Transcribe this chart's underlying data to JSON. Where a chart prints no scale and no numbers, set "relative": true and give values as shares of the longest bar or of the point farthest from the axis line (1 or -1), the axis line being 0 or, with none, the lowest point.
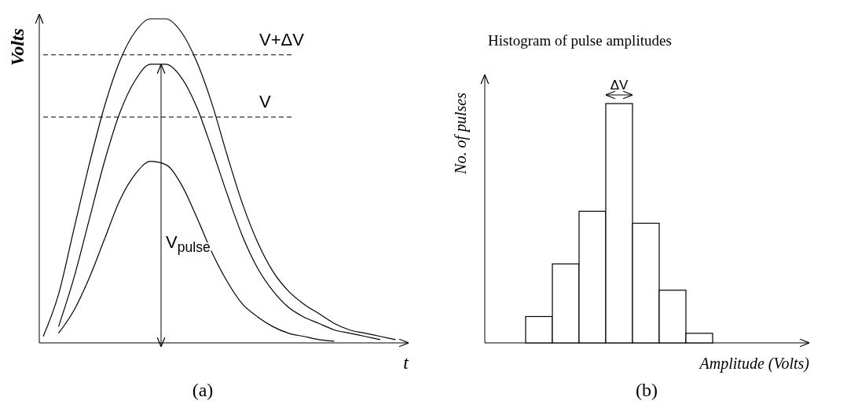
{
  "chart_data": [
    {
      "type": "line",
      "relative": true,
      "xlabel": "t",
      "ylabel": "Volts",
      "annotations": [
        "V$_{pulse}$",
        "(a)"
      ],
      "categories": [
        null,
        null,
        null,
        null,
        null,
        null,
        null,
        null,
        null,
        null,
        null,
        null,
        null,
        null,
        null,
        null,
        null,
        null,
        null,
        null,
        null,
        null,
        null,
        null
      ],
      "series": [
        {
          "color": "#000000",
          "values": [
            0.02,
            0.15,
            0.35,
            0.55,
            0.73,
            0.87,
            0.96,
            1,
            1,
            0.96,
            0.87,
            0.74,
            0.58,
            0.43,
            0.31,
            0.22,
            0.16,
            0.12,
            0.09,
            0.06,
            0.04,
            0.03,
            0.02,
            0.01
          ]
        },
        {
          "color": "#000000",
          "values": [
            null,
            0.05,
            0.2,
            0.38,
            0.56,
            0.71,
            0.81,
            0.86,
            0.86,
            0.82,
            0.73,
            0.6,
            0.46,
            0.33,
            0.23,
            0.16,
            0.11,
            0.08,
            0.06,
            0.04,
            0.03,
            0.02,
            0.01,
            null
          ]
        },
        {
          "color": "#000000",
          "values": [
            null,
            0.03,
            0.1,
            0.2,
            0.32,
            0.44,
            0.52,
            0.56,
            0.55,
            0.49,
            0.39,
            0.28,
            0.19,
            0.12,
            0.08,
            0.05,
            0.03,
            0.02,
            0.01,
            0.005,
            null,
            null,
            null,
            null
          ]
        }
      ],
      "ref_lines": [
        {
          "axis": "y",
          "value": 0.889,
          "label": "V+ΔV",
          "line_style": "dashed"
        },
        {
          "axis": "y",
          "value": 0.697,
          "label": "V",
          "line_style": "dashed"
        }
      ]
    },
    {
      "type": "bar",
      "relative": true,
      "title": "Histogram of pulse amplitudes",
      "xlabel": "Amplitude (Volts)",
      "ylabel": "No. of pulses",
      "annotations": [
        "ΔV",
        "(b)"
      ],
      "categories": [
        null,
        null,
        null,
        null,
        null,
        null,
        null
      ],
      "values": [
        0.11,
        0.33,
        0.55,
        1,
        0.5,
        0.22,
        0.04
      ],
      "color": "#ffffff"
    }
  ]
}
